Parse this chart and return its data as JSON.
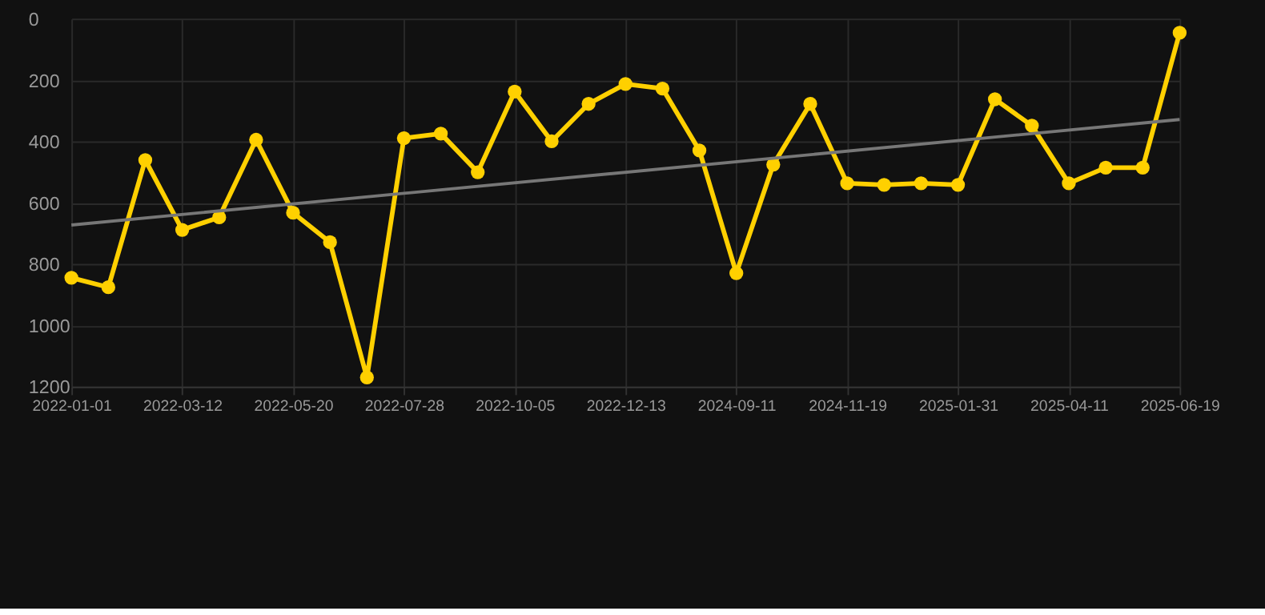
{
  "chart_data": {
    "type": "line",
    "categories": [
      "2022-01-01",
      null,
      null,
      "2022-03-12",
      null,
      null,
      "2022-05-20",
      null,
      null,
      "2022-07-28",
      null,
      null,
      "2022-10-05",
      null,
      null,
      "2022-12-13",
      null,
      null,
      "2024-09-11",
      null,
      null,
      "2024-11-19",
      null,
      null,
      "2025-01-31",
      null,
      null,
      "2025-04-11",
      null,
      null,
      "2025-06-19"
    ],
    "series": [
      {
        "color": "#ffd000",
        "values": [
          845,
          876,
          461,
          689,
          648,
          395,
          633,
          729,
          1170,
          390,
          375,
          501,
          238,
          400,
          278,
          213,
          228,
          430,
          830,
          476,
          278,
          537,
          542,
          537,
          542,
          263,
          349,
          537,
          486,
          486,
          46
        ]
      },
      {
        "type": "line",
        "color": "#777777",
        "marker": "none",
        "values": [
          673,
          null,
          null,
          null,
          null,
          null,
          null,
          null,
          null,
          null,
          null,
          null,
          null,
          null,
          null,
          null,
          null,
          null,
          null,
          null,
          null,
          null,
          null,
          null,
          null,
          null,
          null,
          null,
          null,
          null,
          329
        ]
      }
    ],
    "ylim": [
      1200,
      0
    ],
    "yticks": [
      0,
      200,
      400,
      600,
      800,
      1000,
      1200
    ],
    "grid": true,
    "marker": "circle",
    "line_style": "solid"
  }
}
